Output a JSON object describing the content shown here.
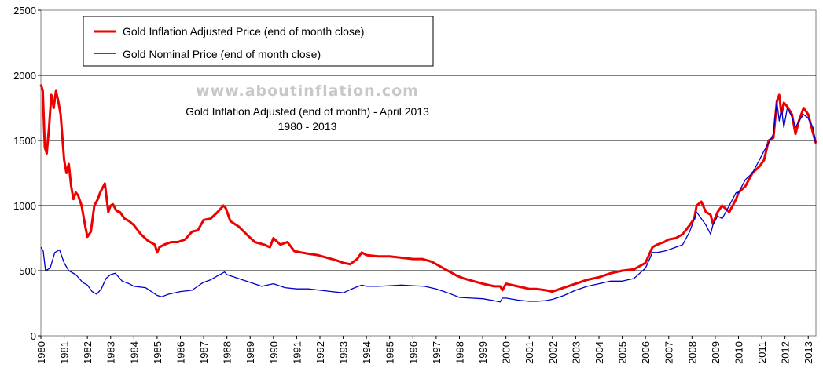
{
  "chart_data": {
    "type": "line",
    "title": "Gold Inflation Adjusted (end of month) - April 2013",
    "subtitle": "1980 - 2013",
    "watermark": "www.aboutinflation.com",
    "xlabel": "",
    "ylabel": "",
    "ylim": [
      0,
      2500
    ],
    "xlim": [
      1980,
      2013.33
    ],
    "yticks": [
      0,
      500,
      1000,
      1500,
      2000,
      2500
    ],
    "xticks": [
      "1980",
      "1981",
      "1982",
      "1983",
      "1984",
      "1985",
      "1986",
      "1987",
      "1988",
      "1989",
      "1990",
      "1991",
      "1992",
      "1993",
      "1994",
      "1995",
      "1996",
      "1997",
      "1998",
      "1999",
      "2000",
      "2001",
      "2002",
      "2003",
      "2004",
      "2005",
      "2006",
      "2007",
      "2008",
      "2009",
      "2010",
      "2011",
      "2012",
      "2013"
    ],
    "grid": "horizontal",
    "legend_position": "top-left",
    "series": [
      {
        "name": "Gold Inflation Adjusted Price (end of month close)",
        "color": "#ee0000",
        "x": [
          1980.0,
          1980.08,
          1980.17,
          1980.25,
          1980.35,
          1980.45,
          1980.55,
          1980.65,
          1980.75,
          1980.85,
          1981.0,
          1981.1,
          1981.2,
          1981.3,
          1981.4,
          1981.5,
          1981.6,
          1981.75,
          1981.9,
          1982.0,
          1982.15,
          1982.3,
          1982.45,
          1982.55,
          1982.75,
          1982.9,
          1983.0,
          1983.1,
          1983.25,
          1983.4,
          1983.6,
          1983.8,
          1984.0,
          1984.3,
          1984.6,
          1984.9,
          1985.0,
          1985.1,
          1985.3,
          1985.6,
          1985.9,
          1986.2,
          1986.5,
          1986.75,
          1987.0,
          1987.3,
          1987.6,
          1987.85,
          1987.95,
          1988.15,
          1988.5,
          1988.9,
          1989.2,
          1989.6,
          1989.85,
          1990.0,
          1990.3,
          1990.6,
          1990.9,
          1991.2,
          1991.5,
          1991.9,
          1992.3,
          1992.7,
          1993.0,
          1993.3,
          1993.6,
          1993.8,
          1994.0,
          1994.5,
          1995.0,
          1995.5,
          1996.0,
          1996.4,
          1996.8,
          1997.0,
          1997.3,
          1997.6,
          1997.9,
          1998.2,
          1998.6,
          1999.0,
          1999.5,
          1999.75,
          1999.85,
          2000.0,
          2000.5,
          2001.0,
          2001.3,
          2001.7,
          2002.0,
          2002.5,
          2003.0,
          2003.5,
          2004.0,
          2004.5,
          2005.0,
          2005.5,
          2006.0,
          2006.3,
          2006.5,
          2006.8,
          2007.0,
          2007.3,
          2007.6,
          2007.9,
          2008.1,
          2008.2,
          2008.4,
          2008.6,
          2008.8,
          2008.9,
          2009.1,
          2009.3,
          2009.6,
          2009.9,
          2010.0,
          2010.3,
          2010.6,
          2010.9,
          2011.1,
          2011.3,
          2011.5,
          2011.65,
          2011.75,
          2011.85,
          2011.95,
          2012.1,
          2012.3,
          2012.45,
          2012.6,
          2012.8,
          2013.0,
          2013.2,
          2013.33
        ],
        "values": [
          1930,
          1880,
          1450,
          1400,
          1600,
          1850,
          1750,
          1880,
          1800,
          1700,
          1350,
          1250,
          1320,
          1150,
          1050,
          1100,
          1080,
          1000,
          850,
          760,
          800,
          1000,
          1050,
          1100,
          1170,
          950,
          1000,
          1010,
          960,
          950,
          900,
          880,
          850,
          780,
          730,
          700,
          640,
          680,
          700,
          720,
          720,
          740,
          800,
          810,
          890,
          900,
          950,
          1000,
          980,
          880,
          840,
          770,
          720,
          700,
          680,
          750,
          700,
          720,
          650,
          640,
          630,
          620,
          600,
          580,
          560,
          550,
          590,
          640,
          620,
          610,
          610,
          600,
          590,
          590,
          570,
          550,
          520,
          490,
          460,
          440,
          420,
          400,
          380,
          380,
          350,
          400,
          380,
          360,
          360,
          350,
          340,
          370,
          400,
          430,
          450,
          480,
          500,
          510,
          560,
          680,
          700,
          720,
          740,
          750,
          780,
          850,
          900,
          1000,
          1030,
          950,
          930,
          860,
          950,
          1000,
          950,
          1050,
          1100,
          1150,
          1250,
          1300,
          1350,
          1500,
          1520,
          1800,
          1850,
          1700,
          1790,
          1760,
          1700,
          1550,
          1650,
          1750,
          1700,
          1560,
          1480
        ],
        "values_note": ""
      },
      {
        "name": "Gold Nominal Price (end of month close)",
        "color": "#0000cc",
        "x": [
          1980.0,
          1980.1,
          1980.2,
          1980.4,
          1980.6,
          1980.8,
          1981.0,
          1981.2,
          1981.5,
          1981.8,
          1982.0,
          1982.2,
          1982.4,
          1982.6,
          1982.8,
          1983.0,
          1983.2,
          1983.5,
          1983.8,
          1984.0,
          1984.5,
          1985.0,
          1985.2,
          1985.5,
          1986.0,
          1986.5,
          1986.9,
          1987.0,
          1987.3,
          1987.6,
          1987.9,
          1988.0,
          1988.5,
          1989.0,
          1989.5,
          1990.0,
          1990.5,
          1991.0,
          1991.5,
          1992.0,
          1992.5,
          1993.0,
          1993.5,
          1993.8,
          1994.0,
          1994.5,
          1995.0,
          1995.5,
          1996.0,
          1996.5,
          1997.0,
          1997.5,
          1998.0,
          1998.5,
          1999.0,
          1999.5,
          1999.75,
          1999.85,
          2000.0,
          2000.5,
          2001.0,
          2001.3,
          2001.7,
          2002.0,
          2002.5,
          2003.0,
          2003.5,
          2004.0,
          2004.5,
          2005.0,
          2005.5,
          2006.0,
          2006.3,
          2006.5,
          2006.8,
          2007.0,
          2007.3,
          2007.6,
          2007.9,
          2008.1,
          2008.2,
          2008.4,
          2008.6,
          2008.8,
          2008.9,
          2009.1,
          2009.3,
          2009.6,
          2009.9,
          2010.0,
          2010.3,
          2010.6,
          2010.9,
          2011.1,
          2011.3,
          2011.5,
          2011.65,
          2011.75,
          2011.85,
          2011.95,
          2012.1,
          2012.3,
          2012.45,
          2012.6,
          2012.8,
          2013.0,
          2013.2,
          2013.33
        ],
        "values": [
          680,
          650,
          500,
          520,
          640,
          660,
          560,
          500,
          470,
          410,
          390,
          340,
          320,
          360,
          440,
          470,
          480,
          420,
          400,
          380,
          370,
          310,
          300,
          320,
          340,
          350,
          400,
          410,
          430,
          460,
          490,
          470,
          440,
          410,
          380,
          400,
          370,
          360,
          360,
          350,
          340,
          330,
          370,
          390,
          380,
          380,
          385,
          390,
          385,
          380,
          360,
          330,
          295,
          290,
          285,
          270,
          260,
          290,
          290,
          275,
          265,
          265,
          270,
          280,
          310,
          350,
          380,
          400,
          420,
          420,
          440,
          520,
          640,
          640,
          650,
          660,
          680,
          700,
          800,
          900,
          950,
          900,
          850,
          780,
          850,
          920,
          900,
          1000,
          1100,
          1100,
          1200,
          1250,
          1350,
          1420,
          1480,
          1550,
          1800,
          1650,
          1750,
          1600,
          1750,
          1680,
          1600,
          1650,
          1700,
          1670,
          1600,
          1470
        ],
        "values_note": ""
      }
    ]
  }
}
